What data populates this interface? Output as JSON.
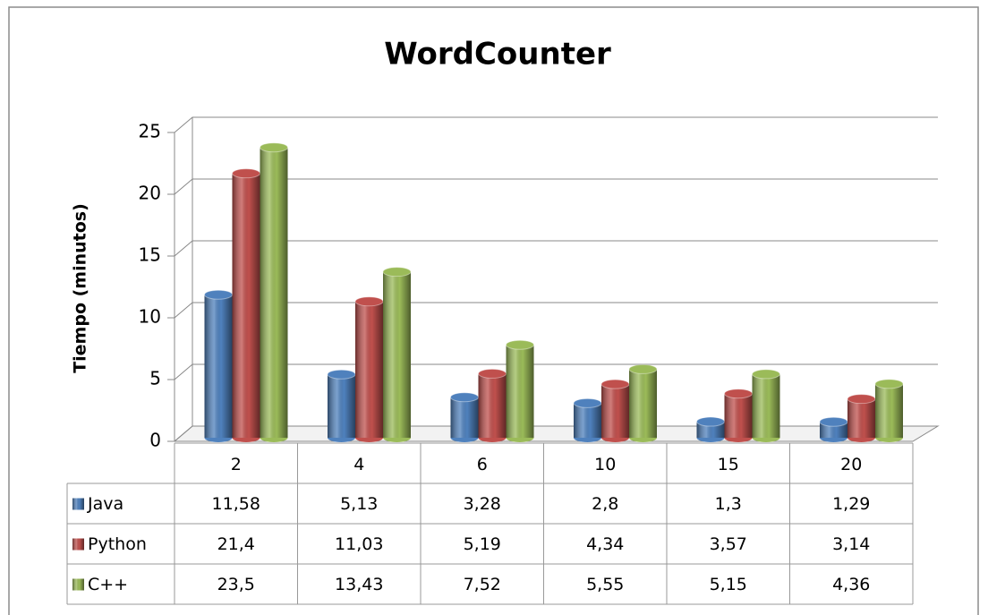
{
  "chart_data": {
    "type": "bar",
    "title": "WordCounter",
    "y_label": "Tiempo (minutos)",
    "categories": [
      "2",
      "4",
      "6",
      "10",
      "15",
      "20"
    ],
    "series": [
      {
        "name": "Java",
        "color": "#4f81bd",
        "values": [
          11.58,
          5.13,
          3.28,
          2.8,
          1.3,
          1.29
        ],
        "value_labels": [
          "11,58",
          "5,13",
          "3,28",
          "2,8",
          "1,3",
          "1,29"
        ]
      },
      {
        "name": "Python",
        "color": "#c0504d",
        "values": [
          21.4,
          11.03,
          5.19,
          4.34,
          3.57,
          3.14
        ],
        "value_labels": [
          "21,4",
          "11,03",
          "5,19",
          "4,34",
          "3,57",
          "3,14"
        ]
      },
      {
        "name": "C++",
        "color": "#9bbb59",
        "values": [
          23.5,
          13.43,
          7.52,
          5.55,
          5.15,
          4.36
        ],
        "value_labels": [
          "23,5",
          "13,43",
          "7,52",
          "5,55",
          "5,15",
          "4,36"
        ]
      }
    ],
    "ylim": [
      0,
      25
    ],
    "yticks": [
      0,
      5,
      10,
      15,
      20,
      25
    ],
    "grid": true
  }
}
